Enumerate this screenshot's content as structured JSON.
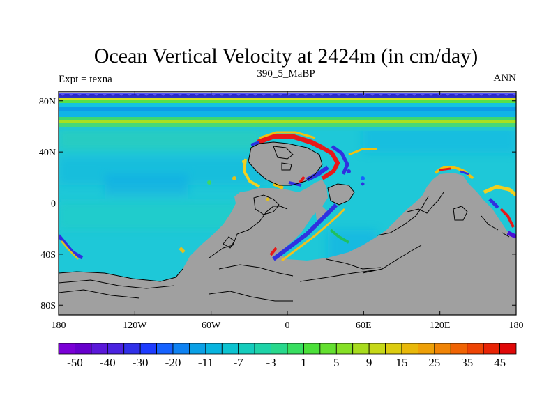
{
  "title": "Ocean Vertical Velocity at 2424m (in cm/day)",
  "subtitle": "390_5_MaBP",
  "left_label": "Expt = texna",
  "right_label": "ANN",
  "x_ticks": [
    "180",
    "120W",
    "60W",
    "0",
    "60E",
    "120E",
    "180"
  ],
  "y_ticks": [
    "80N",
    "40N",
    "0",
    "40S",
    "80S"
  ],
  "colorbar": {
    "labels": [
      "-50",
      "-40",
      "-30",
      "-20",
      "-11",
      "-7",
      "-3",
      "1",
      "5",
      "9",
      "15",
      "25",
      "35",
      "45"
    ],
    "colors": [
      "#7a00d6",
      "#6600cc",
      "#5a18d9",
      "#4a22e0",
      "#3030e8",
      "#1e3cff",
      "#1662ff",
      "#0f82f2",
      "#0aa0e6",
      "#08b4df",
      "#0cc3d0",
      "#14ccbc",
      "#1ed3a8",
      "#28d88c",
      "#38de60",
      "#4ce03a",
      "#64e030",
      "#86e026",
      "#a8dc1e",
      "#c6d818",
      "#dccc10",
      "#e8b80a",
      "#eea008",
      "#f08406",
      "#f06404",
      "#ee4404",
      "#e82406",
      "#e00808"
    ]
  },
  "map": {
    "land_color": "#a0a0a0",
    "ocean_base_color": "#1ec8d8"
  }
}
